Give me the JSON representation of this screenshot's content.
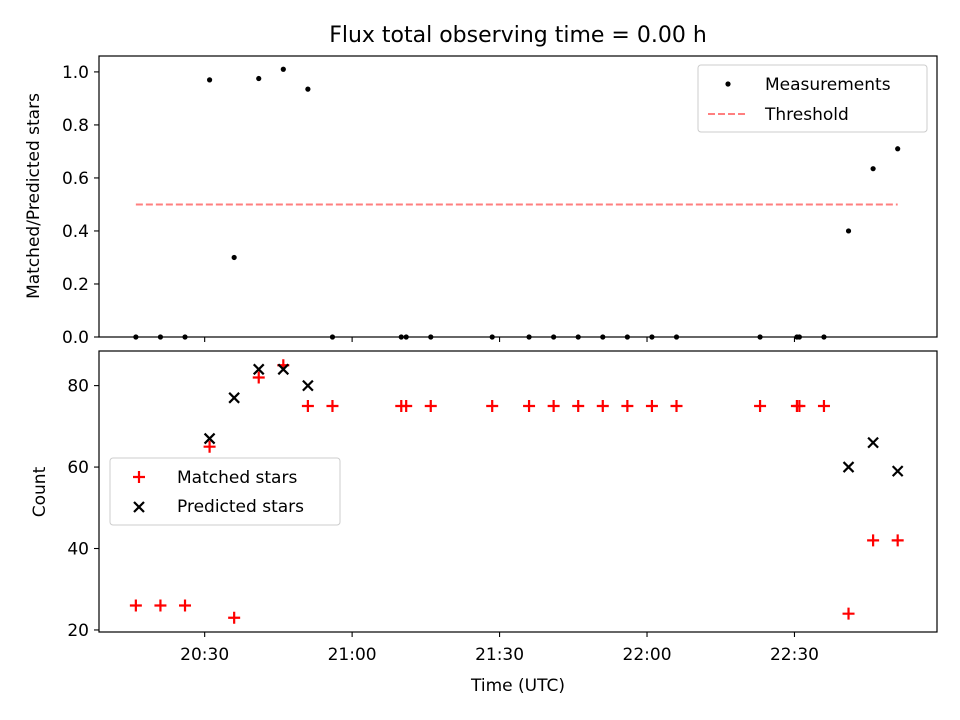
{
  "chart_data": [
    {
      "type": "scatter",
      "title": "Flux total observing time = 0.00 h",
      "xlabel": "",
      "ylabel": "Matched/Predicted stars",
      "ylim": [
        0,
        1.06
      ],
      "yticks": [
        "0.0",
        "0.2",
        "0.4",
        "0.6",
        "0.8",
        "1.0"
      ],
      "grid": false,
      "legend_position": "upper right",
      "series": [
        {
          "name": "Measurements",
          "marker": "dot",
          "color": "#000000",
          "points": [
            [
              "20:16",
              0.0
            ],
            [
              "20:21",
              0.0
            ],
            [
              "20:26",
              0.0
            ],
            [
              "20:31",
              0.97
            ],
            [
              "20:36",
              0.3
            ],
            [
              "20:41",
              0.975
            ],
            [
              "20:46",
              1.01
            ],
            [
              "20:51",
              0.935
            ],
            [
              "20:56",
              0.0
            ],
            [
              "21:10",
              0.0
            ],
            [
              "21:11",
              0.0
            ],
            [
              "21:16",
              0.0
            ],
            [
              "21:28.5",
              0.0
            ],
            [
              "21:36",
              0.0
            ],
            [
              "21:41",
              0.0
            ],
            [
              "21:46",
              0.0
            ],
            [
              "21:51",
              0.0
            ],
            [
              "21:56",
              0.0
            ],
            [
              "22:01",
              0.0
            ],
            [
              "22:06",
              0.0
            ],
            [
              "22:23",
              0.0
            ],
            [
              "22:30.5",
              0.0
            ],
            [
              "22:31",
              0.0
            ],
            [
              "22:36",
              0.0
            ],
            [
              "22:41",
              0.4
            ],
            [
              "22:46",
              0.635
            ],
            [
              "22:51",
              0.71
            ]
          ]
        },
        {
          "name": "Threshold",
          "style": "dashed",
          "color": "#ff7f7f",
          "points": [
            [
              "20:16",
              0.5
            ],
            [
              "22:51",
              0.5
            ]
          ]
        }
      ]
    },
    {
      "type": "scatter",
      "title": "",
      "xlabel": "Time (UTC)",
      "ylabel": "Count",
      "ylim": [
        19.5,
        88.5
      ],
      "yticks": [
        "20",
        "40",
        "60",
        "80"
      ],
      "xticks": [
        "20:30",
        "21:00",
        "21:30",
        "22:00",
        "22:30"
      ],
      "grid": false,
      "legend_position": "center left",
      "series": [
        {
          "name": "Matched stars",
          "marker": "plus",
          "color": "#ff0000",
          "points": [
            [
              "20:16",
              26
            ],
            [
              "20:21",
              26
            ],
            [
              "20:26",
              26
            ],
            [
              "20:31",
              65
            ],
            [
              "20:36",
              23
            ],
            [
              "20:41",
              82
            ],
            [
              "20:46",
              85
            ],
            [
              "20:51",
              75
            ],
            [
              "20:56",
              75
            ],
            [
              "21:10",
              75
            ],
            [
              "21:11",
              75
            ],
            [
              "21:16",
              75
            ],
            [
              "21:28.5",
              75
            ],
            [
              "21:36",
              75
            ],
            [
              "21:41",
              75
            ],
            [
              "21:46",
              75
            ],
            [
              "21:51",
              75
            ],
            [
              "21:56",
              75
            ],
            [
              "22:01",
              75
            ],
            [
              "22:06",
              75
            ],
            [
              "22:23",
              75
            ],
            [
              "22:30.5",
              75
            ],
            [
              "22:31",
              75
            ],
            [
              "22:36",
              75
            ],
            [
              "22:41",
              24
            ],
            [
              "22:46",
              42
            ],
            [
              "22:51",
              42
            ]
          ]
        },
        {
          "name": "Predicted stars",
          "marker": "x",
          "color": "#000000",
          "points": [
            [
              "20:31",
              67
            ],
            [
              "20:36",
              77
            ],
            [
              "20:41",
              84
            ],
            [
              "20:46",
              84
            ],
            [
              "20:51",
              80
            ],
            [
              "22:41",
              60
            ],
            [
              "22:46",
              66
            ],
            [
              "22:51",
              59
            ]
          ]
        }
      ]
    }
  ]
}
